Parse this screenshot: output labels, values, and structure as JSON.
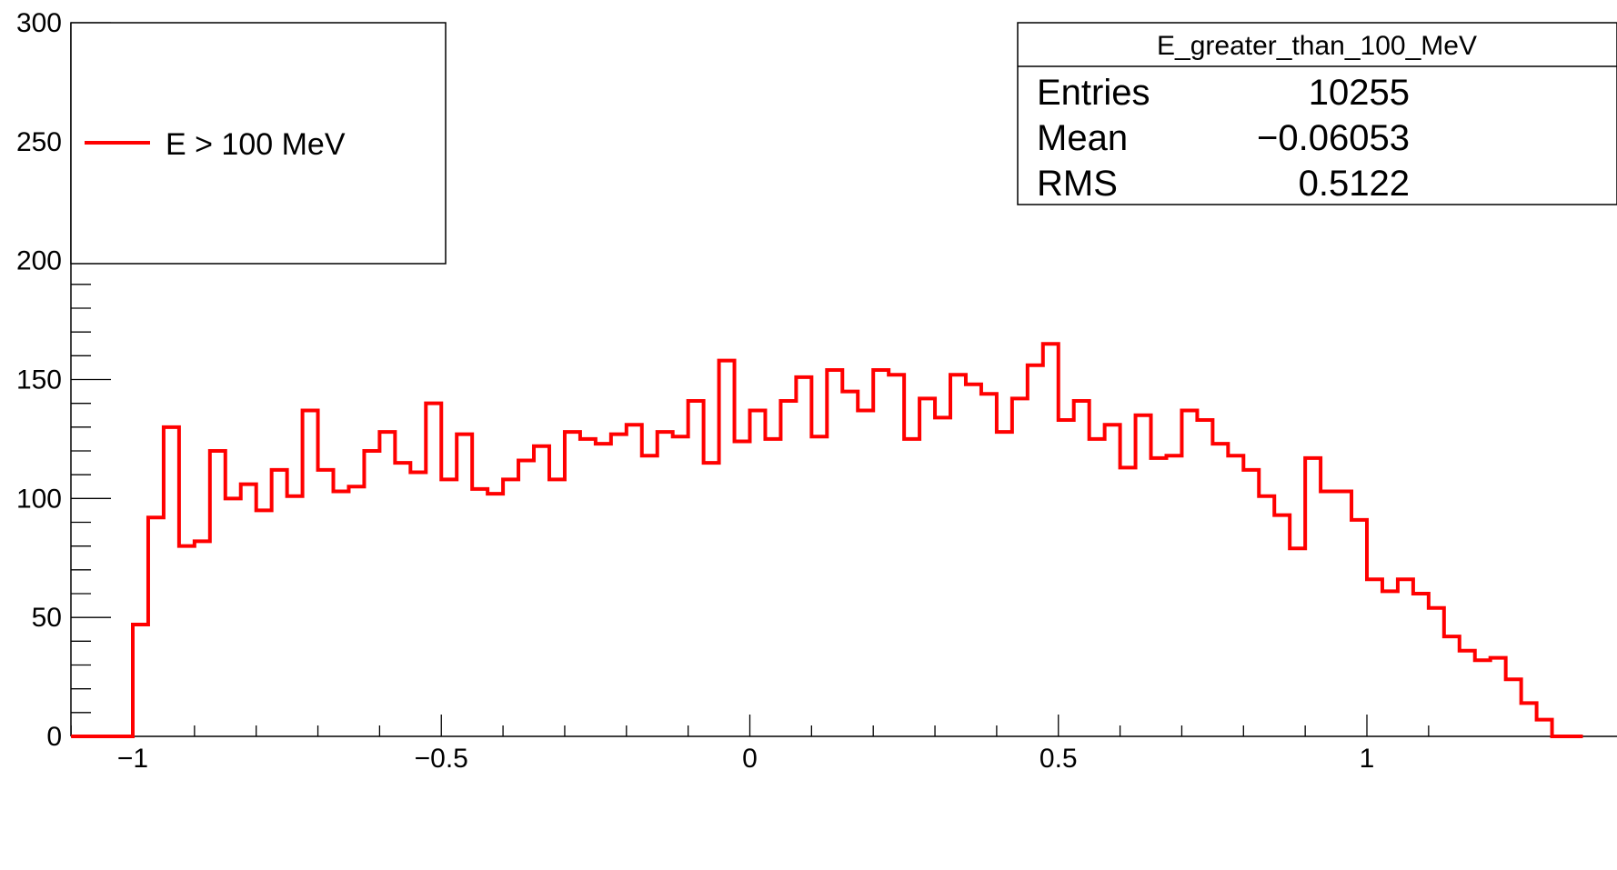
{
  "chart_data": {
    "type": "histogram",
    "title": "",
    "xlabel": "",
    "ylabel": "",
    "xlim": [
      -1.1,
      1.1
    ],
    "ylim": [
      0,
      300
    ],
    "grid": false,
    "bin_width": 0.025,
    "x_ticks": [
      {
        "value": -1,
        "label": "−1"
      },
      {
        "value": -0.5,
        "label": "−0.5"
      },
      {
        "value": 0,
        "label": "0"
      },
      {
        "value": 0.5,
        "label": "0.5"
      },
      {
        "value": 1,
        "label": "1"
      }
    ],
    "y_ticks": [
      {
        "value": 0,
        "label": "0"
      },
      {
        "value": 50,
        "label": "50"
      },
      {
        "value": 100,
        "label": "100"
      },
      {
        "value": 150,
        "label": "150"
      },
      {
        "value": 200,
        "label": "200"
      },
      {
        "value": 250,
        "label": "250"
      },
      {
        "value": 300,
        "label": "300"
      }
    ],
    "series": [
      {
        "name": "E > 100 MeV",
        "color": "#ff0000",
        "bin_edges_start": -1.1,
        "values": [
          0,
          0,
          0,
          0,
          47,
          92,
          130,
          80,
          82,
          120,
          100,
          106,
          95,
          112,
          101,
          137,
          112,
          103,
          105,
          120,
          128,
          115,
          111,
          140,
          108,
          127,
          104,
          102,
          108,
          116,
          122,
          108,
          128,
          125,
          123,
          127,
          131,
          118,
          128,
          126,
          141,
          115,
          158,
          124,
          137,
          125,
          141,
          151,
          126,
          154,
          145,
          137,
          154,
          152,
          125,
          142,
          134,
          152,
          148,
          144,
          128,
          142,
          156,
          165,
          133,
          141,
          125,
          131,
          113,
          135,
          117,
          118,
          137,
          133,
          123,
          118,
          112,
          101,
          93,
          79,
          117,
          103,
          103,
          91,
          66,
          61,
          66,
          60,
          54,
          42,
          36,
          32,
          33,
          24,
          14,
          7,
          0,
          0
        ]
      }
    ],
    "legend": {
      "position": "top-left",
      "entries": [
        {
          "label": "E > 100 MeV",
          "color": "#ff0000"
        }
      ]
    },
    "stats_box": {
      "position": "top-right",
      "title": "E_greater_than_100_MeV",
      "rows": [
        {
          "label": "Entries",
          "value": "10255"
        },
        {
          "label": "Mean",
          "value": "−0.06053"
        },
        {
          "label": "RMS",
          "value": "0.5122"
        }
      ]
    }
  }
}
